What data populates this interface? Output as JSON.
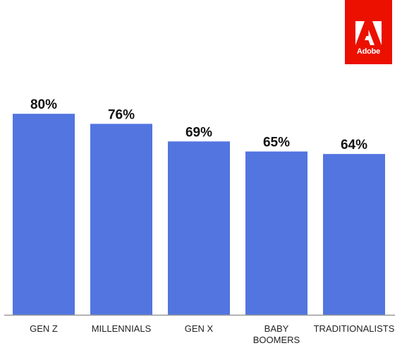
{
  "brand": {
    "name": "Adobe",
    "color": "#eb1000"
  },
  "chart_data": {
    "type": "bar",
    "categories": [
      "GEN Z",
      "MILLENNIALS",
      "GEN X",
      "BABY BOOMERS",
      "TRADITIONALISTS"
    ],
    "category_lines": [
      [
        "GEN Z"
      ],
      [
        "MILLENNIALS"
      ],
      [
        "GEN X"
      ],
      [
        "BABY",
        "BOOMERS"
      ],
      [
        "TRADITIONALISTS"
      ]
    ],
    "values": [
      80,
      76,
      69,
      65,
      64
    ],
    "value_labels": [
      "80%",
      "76%",
      "69%",
      "65%",
      "64%"
    ],
    "unit": "%",
    "ylim": [
      0,
      100
    ],
    "bar_color": "#5275e0",
    "axis_color": "#999999",
    "grid": false,
    "legend": "none",
    "title": "",
    "xlabel": "",
    "ylabel": ""
  }
}
